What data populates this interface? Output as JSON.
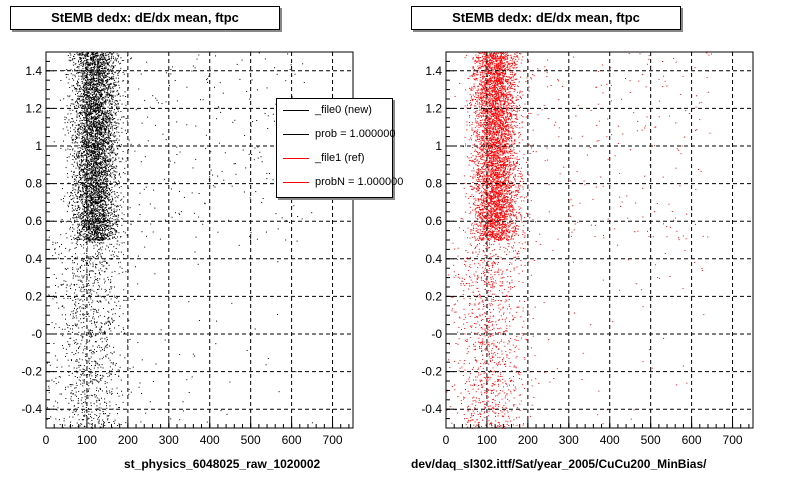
{
  "chart_data": [
    {
      "type": "scatter",
      "title": "StEMB dedx: dE/dx mean, ftpc",
      "xlabel": "st_physics_6048025_raw_1020002",
      "ylabel": "",
      "xlim": [
        0,
        750
      ],
      "ylim": [
        -0.5,
        1.5
      ],
      "x_ticks": [
        "0",
        "100",
        "200",
        "300",
        "400",
        "500",
        "600",
        "700"
      ],
      "y_ticks": [
        "-0.4",
        "-0.2",
        "-0",
        "0.2",
        "0.4",
        "0.6",
        "0.8",
        "1",
        "1.2",
        "1.4"
      ],
      "grid": true,
      "marker_color": "#000000",
      "clusters": [
        {
          "x_center": 120,
          "x_spread": 28,
          "y_min": 0.5,
          "y_max": 1.5,
          "density": "high"
        },
        {
          "x_center": 110,
          "x_spread": 45,
          "y_min": -0.5,
          "y_max": 0.5,
          "density": "low"
        }
      ]
    },
    {
      "type": "scatter",
      "title": "StEMB dedx: dE/dx mean, ftpc",
      "xlabel": "dev/daq_sl302.ittf/Sat/year_2005/CuCu200_MinBias/",
      "ylabel": "",
      "xlim": [
        0,
        750
      ],
      "ylim": [
        -0.5,
        1.5
      ],
      "x_ticks": [
        "0",
        "100",
        "200",
        "300",
        "400",
        "500",
        "600",
        "700"
      ],
      "y_ticks": [
        "-0.4",
        "-0.2",
        "-0",
        "0.2",
        "0.4",
        "0.6",
        "0.8",
        "1",
        "1.2",
        "1.4"
      ],
      "grid": true,
      "marker_color": "#ff0000",
      "clusters": [
        {
          "x_center": 120,
          "x_spread": 28,
          "y_min": 0.5,
          "y_max": 1.5,
          "density": "high"
        },
        {
          "x_center": 110,
          "x_spread": 45,
          "y_min": -0.5,
          "y_max": 0.5,
          "density": "low"
        }
      ]
    }
  ],
  "legend": {
    "placement": "top-right of left plot",
    "entries": [
      {
        "label": "_file0 (new)",
        "color": "#000000"
      },
      {
        "label": "prob = 1.000000",
        "color": "#000000"
      },
      {
        "label": "_file1 (ref)",
        "color": "#ff0000"
      },
      {
        "label": "probN = 1.000000",
        "color": "#ff0000"
      }
    ]
  }
}
